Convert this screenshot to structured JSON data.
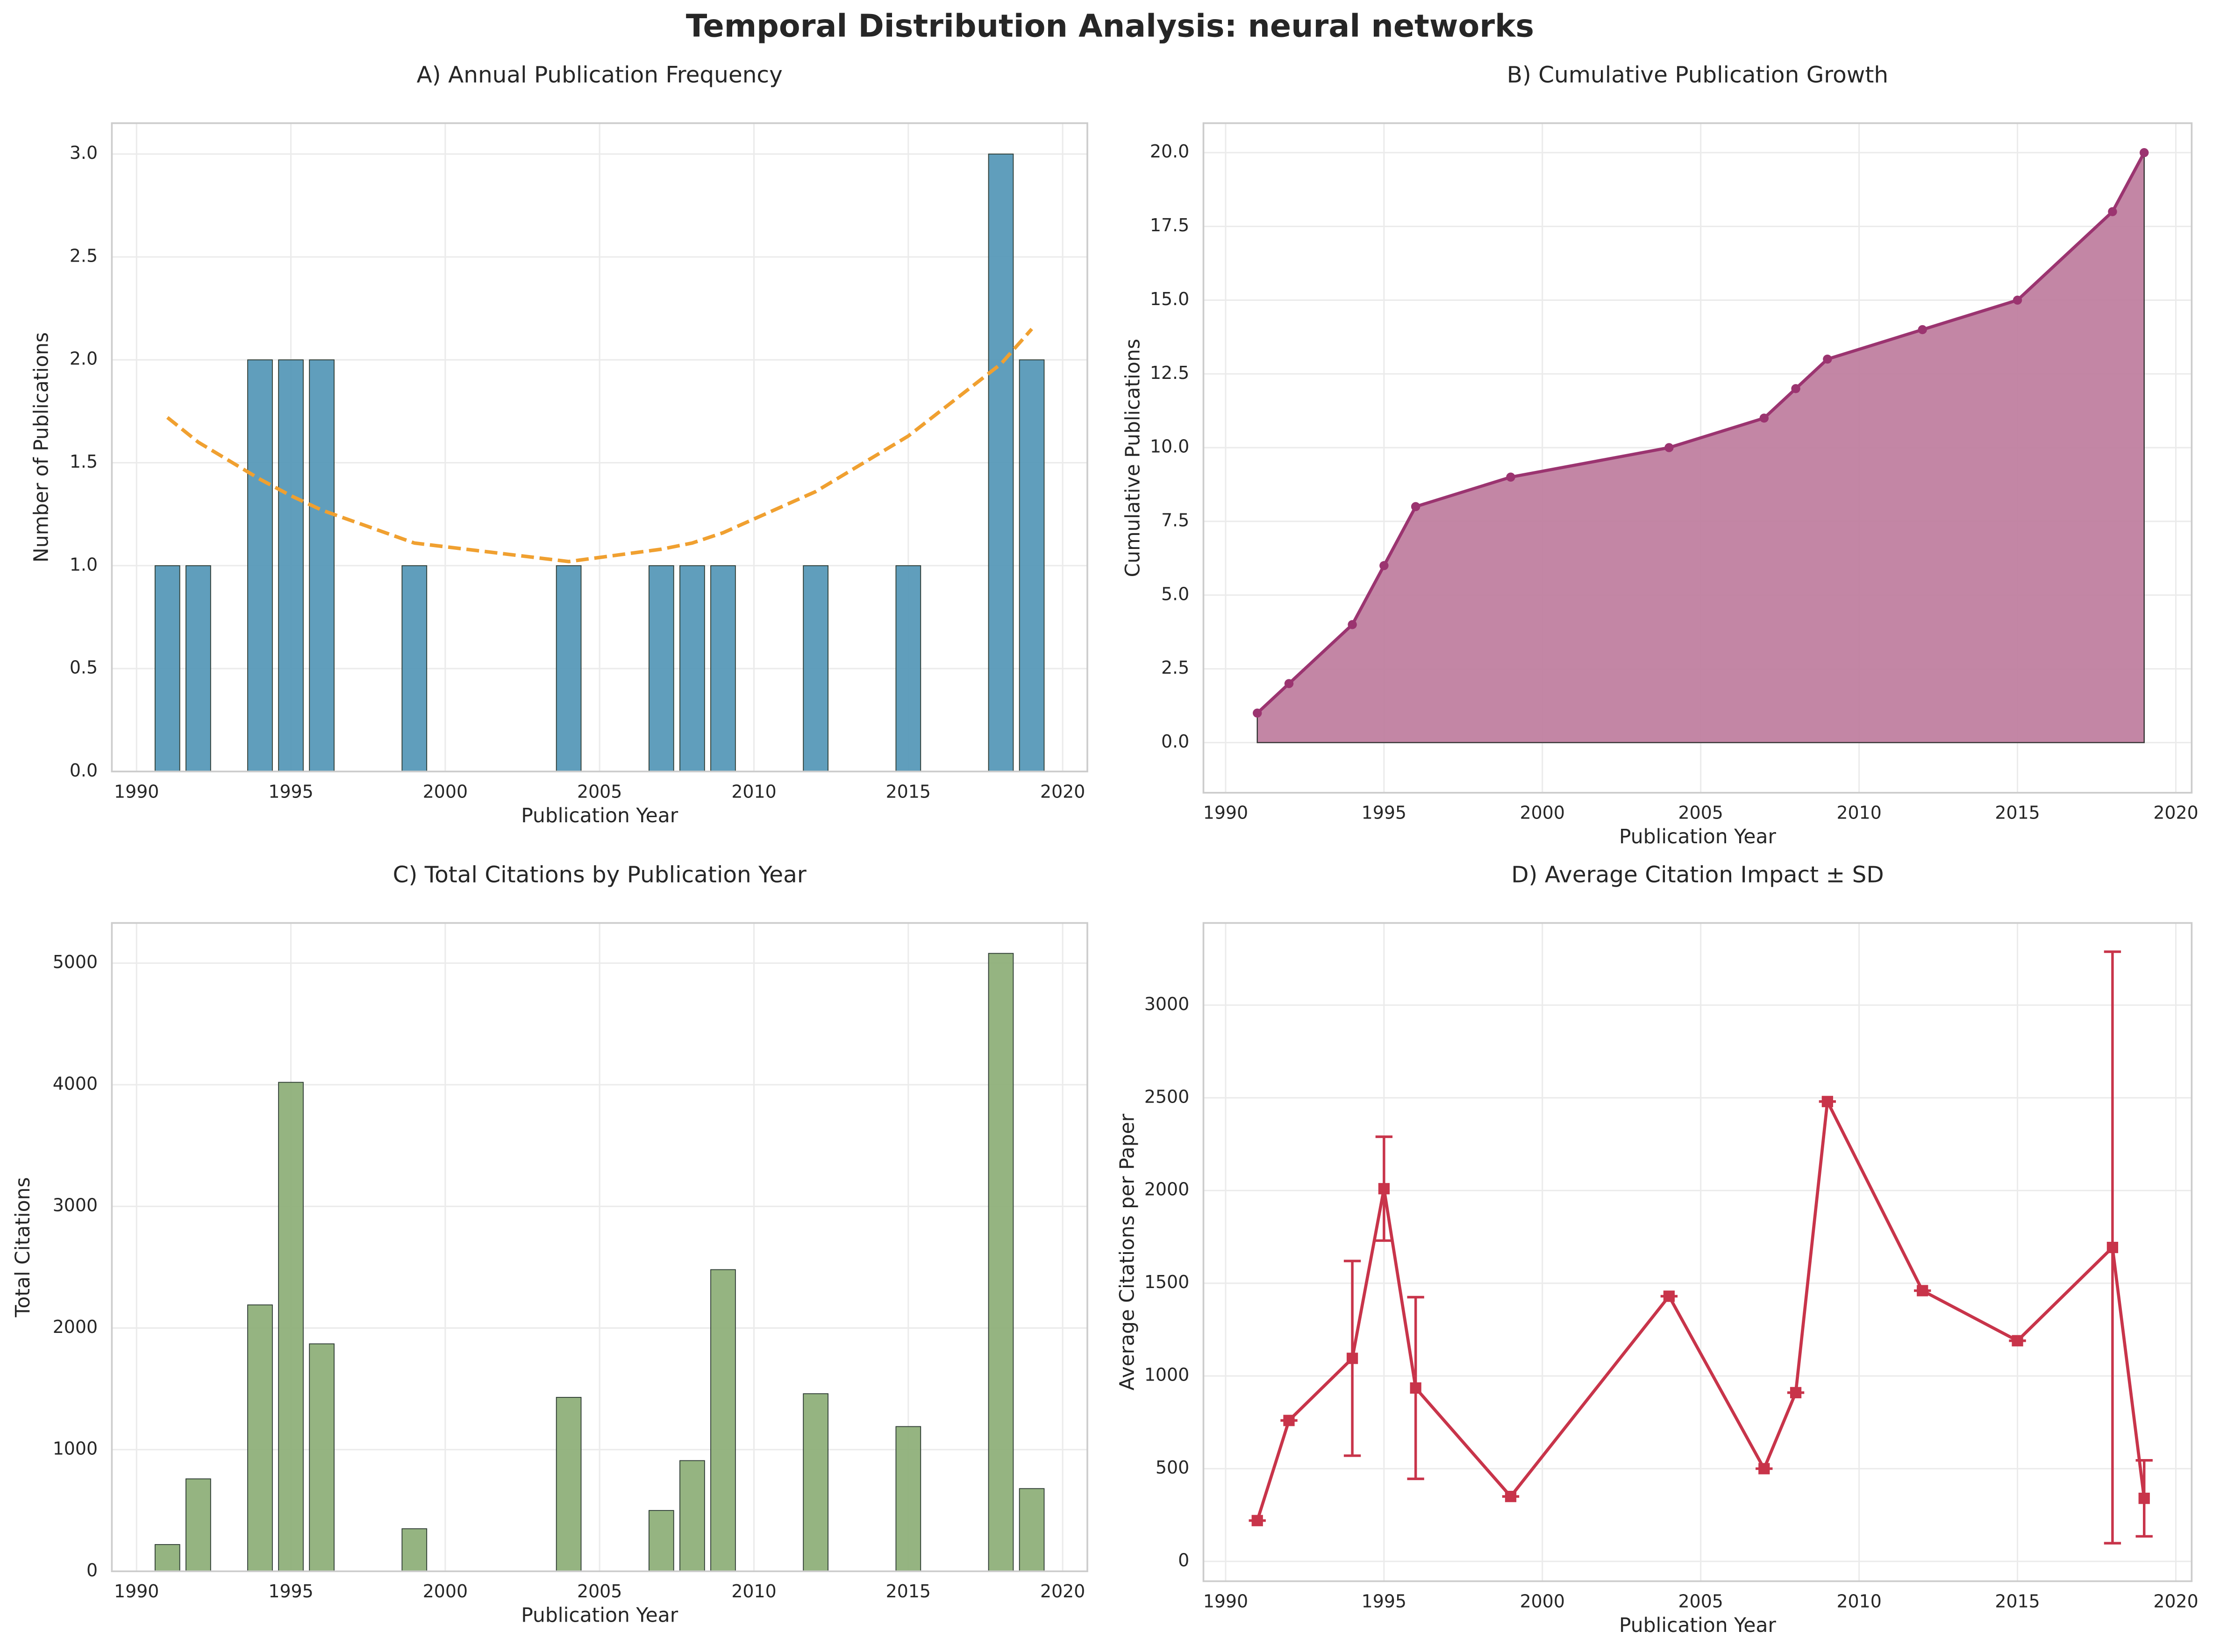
{
  "title": "Temporal Distribution Analysis: neural networks",
  "chart_data": [
    {
      "type": "bar",
      "title": "A) Annual Publication Frequency",
      "x_label": "Publication Year",
      "y_label": "Number of Publications",
      "x": [
        1991,
        1992,
        1994,
        1995,
        1996,
        1999,
        2004,
        2007,
        2008,
        2009,
        2012,
        2015,
        2018,
        2019
      ],
      "series": [
        {
          "type": "bar",
          "color": "#5799b8",
          "values": [
            1,
            1,
            2,
            2,
            2,
            1,
            1,
            1,
            1,
            1,
            1,
            1,
            3,
            2
          ]
        },
        {
          "type": "line",
          "style": "dashed",
          "color": "#f0a030",
          "values": [
            1.72,
            1.6,
            1.42,
            1.34,
            1.27,
            1.11,
            1.02,
            1.08,
            1.11,
            1.16,
            1.36,
            1.63,
            1.98,
            2.15
          ]
        }
      ],
      "xlim": [
        1989.2,
        2020.8
      ],
      "xticks": [
        1990,
        1995,
        2000,
        2005,
        2010,
        2015,
        2020
      ],
      "ylim": [
        0,
        3.15
      ],
      "yticks": [
        {
          "value": 0,
          "label": "0.0"
        },
        0.5,
        {
          "value": 1,
          "label": "1.0"
        },
        1.5,
        {
          "value": 2,
          "label": "2.0"
        },
        2.5,
        {
          "value": 3,
          "label": "3.0"
        }
      ],
      "grid": true
    },
    {
      "type": "area",
      "title": "B) Cumulative Publication Growth",
      "x_label": "Publication Year",
      "y_label": "Cumulative Publications",
      "x": [
        1991,
        1992,
        1994,
        1995,
        1996,
        1999,
        2004,
        2007,
        2008,
        2009,
        2012,
        2015,
        2018,
        2019
      ],
      "series": [
        {
          "type": "area",
          "color": "#9b3470",
          "fill": "#c07fa0",
          "values": [
            1,
            2,
            4,
            6,
            8,
            9,
            10,
            11,
            12,
            13,
            14,
            15,
            18,
            20
          ]
        }
      ],
      "xlim": [
        1989.3,
        2020.5
      ],
      "xticks": [
        1990,
        1995,
        2000,
        2005,
        2010,
        2015,
        2020
      ],
      "ylim": [
        -1.7,
        21
      ],
      "yticks": [
        {
          "value": 0,
          "label": "0.0"
        },
        2.5,
        {
          "value": 5,
          "label": "5.0"
        },
        7.5,
        {
          "value": 10,
          "label": "10.0"
        },
        12.5,
        {
          "value": 15,
          "label": "15.0"
        },
        17.5,
        {
          "value": 20,
          "label": "20.0"
        }
      ],
      "grid": true
    },
    {
      "type": "bar",
      "title": "C) Total Citations by Publication Year",
      "x_label": "Publication Year",
      "y_label": "Total Citations",
      "x": [
        1991,
        1992,
        1994,
        1995,
        1996,
        1999,
        2004,
        2007,
        2008,
        2009,
        2012,
        2015,
        2018,
        2019
      ],
      "series": [
        {
          "type": "bar",
          "color": "#8fb07a",
          "values": [
            220,
            760,
            2190,
            4020,
            1870,
            350,
            1430,
            500,
            910,
            2480,
            1460,
            1190,
            5080,
            680
          ]
        }
      ],
      "xlim": [
        1989.2,
        2020.8
      ],
      "xticks": [
        1990,
        1995,
        2000,
        2005,
        2010,
        2015,
        2020
      ],
      "ylim": [
        0,
        5330
      ],
      "yticks": [
        0,
        1000,
        2000,
        3000,
        4000,
        5000
      ],
      "grid": true
    },
    {
      "type": "line",
      "title": "D) Average Citation Impact ± SD",
      "x_label": "Publication Year",
      "y_label": "Average Citations per Paper",
      "x": [
        1991,
        1992,
        1994,
        1995,
        1996,
        1999,
        2004,
        2007,
        2008,
        2009,
        2012,
        2015,
        2018,
        2019
      ],
      "series": [
        {
          "type": "errorline",
          "color": "#c8344a",
          "values": [
            220,
            760,
            1095,
            2010,
            935,
            350,
            1430,
            500,
            910,
            2480,
            1460,
            1190,
            1693,
            340
          ],
          "errors": [
            0,
            0,
            525,
            280,
            490,
            0,
            0,
            0,
            0,
            0,
            0,
            0,
            1595,
            205
          ]
        }
      ],
      "xlim": [
        1989.3,
        2020.5
      ],
      "xticks": [
        1990,
        1995,
        2000,
        2005,
        2010,
        2015,
        2020
      ],
      "ylim": [
        -107,
        3443
      ],
      "yticks": [
        0,
        500,
        1000,
        1500,
        2000,
        2500,
        3000
      ],
      "grid": true
    }
  ]
}
